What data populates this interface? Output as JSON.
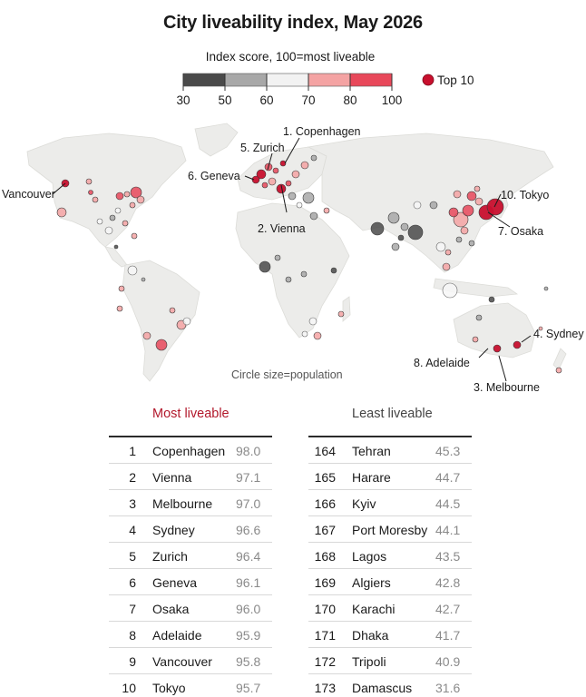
{
  "title": "City liveability index, May 2026",
  "legend": {
    "title": "Index score, 100=most liveable",
    "ticks": [
      "30",
      "50",
      "60",
      "70",
      "80",
      "100"
    ],
    "colors": [
      "#4a4a4a",
      "#a8a8a8",
      "#f2f2f2",
      "#f4a3a3",
      "#e8485a"
    ],
    "top10_label": "Top 10",
    "top10_color": "#c8102e"
  },
  "map": {
    "size_note": "Circle size=population",
    "labels": {
      "copenhagen": "1. Copenhagen",
      "zurich": "5. Zurich",
      "geneva": "6. Geneva",
      "vienna": "2. Vienna",
      "vancouver": "Vancouver",
      "tokyo": "10. Tokyo",
      "osaka": "7. Osaka",
      "sydney": "4. Sydney",
      "adelaide": "8. Adelaide",
      "melbourne": "3. Melbourne"
    }
  },
  "most_liveable": {
    "heading": "Most liveable",
    "rows": [
      {
        "rank": "1",
        "city": "Copenhagen",
        "score": "98.0"
      },
      {
        "rank": "2",
        "city": "Vienna",
        "score": "97.1"
      },
      {
        "rank": "3",
        "city": "Melbourne",
        "score": "97.0"
      },
      {
        "rank": "4",
        "city": "Sydney",
        "score": "96.6"
      },
      {
        "rank": "5",
        "city": "Zurich",
        "score": "96.4"
      },
      {
        "rank": "6",
        "city": "Geneva",
        "score": "96.1"
      },
      {
        "rank": "7",
        "city": "Osaka",
        "score": "96.0"
      },
      {
        "rank": "8",
        "city": "Adelaide",
        "score": "95.9"
      },
      {
        "rank": "9",
        "city": "Vancouver",
        "score": "95.8"
      },
      {
        "rank": "10",
        "city": "Tokyo",
        "score": "95.7"
      }
    ]
  },
  "least_liveable": {
    "heading": "Least liveable",
    "rows": [
      {
        "rank": "164",
        "city": "Tehran",
        "score": "45.3"
      },
      {
        "rank": "165",
        "city": "Harare",
        "score": "44.7"
      },
      {
        "rank": "166",
        "city": "Kyiv",
        "score": "44.5"
      },
      {
        "rank": "167",
        "city": "Port Moresby",
        "score": "44.1"
      },
      {
        "rank": "168",
        "city": "Lagos",
        "score": "43.5"
      },
      {
        "rank": "169",
        "city": "Algiers",
        "score": "42.8"
      },
      {
        "rank": "170",
        "city": "Karachi",
        "score": "42.7"
      },
      {
        "rank": "171",
        "city": "Dhaka",
        "score": "41.7"
      },
      {
        "rank": "172",
        "city": "Tripoli",
        "score": "40.9"
      },
      {
        "rank": "173",
        "city": "Damascus",
        "score": "31.6"
      }
    ]
  }
}
